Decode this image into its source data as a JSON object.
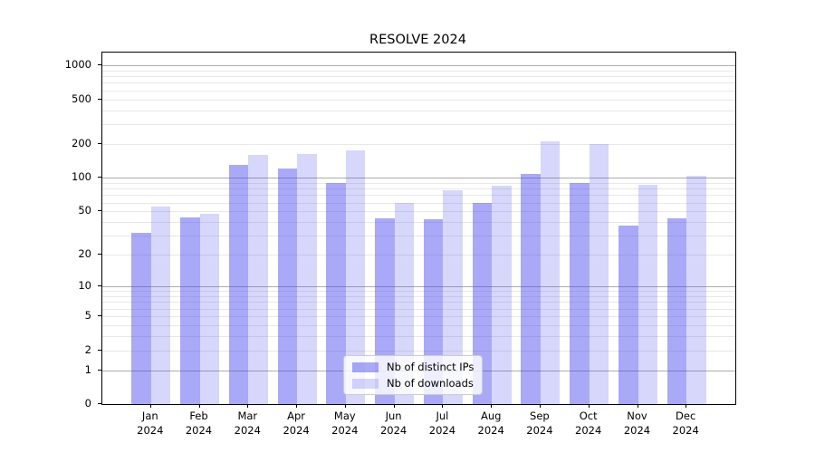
{
  "chart_data": {
    "type": "bar",
    "title": "RESOLVE 2024",
    "categories": [
      "Jan",
      "Feb",
      "Mar",
      "Apr",
      "May",
      "Jun",
      "Jul",
      "Aug",
      "Sep",
      "Oct",
      "Nov",
      "Dec"
    ],
    "category_year": "2024",
    "series": [
      {
        "name": "Nb of distinct IPs",
        "color": "rgba(68,68,238,0.46)",
        "values": [
          32,
          44,
          131,
          121,
          89,
          43,
          42,
          60,
          108,
          90,
          37,
          43
        ]
      },
      {
        "name": "Nb of downloads",
        "color": "rgba(68,68,238,0.21)",
        "values": [
          55,
          47,
          159,
          162,
          176,
          60,
          78,
          85,
          213,
          199,
          86,
          104
        ]
      }
    ],
    "y_scale": "symlog-ln(1+x)",
    "y_ticks": [
      0,
      1,
      2,
      5,
      10,
      20,
      50,
      100,
      200,
      500,
      1000
    ],
    "y_major_gridlines": [
      1,
      10,
      100,
      1000
    ],
    "y_minor_gridlines": [
      2,
      3,
      4,
      5,
      6,
      7,
      8,
      9,
      20,
      30,
      40,
      50,
      60,
      70,
      80,
      90,
      200,
      300,
      400,
      500,
      600,
      700,
      800,
      900
    ],
    "ylim": [
      0,
      1295
    ],
    "xlabel": "",
    "ylabel": "",
    "grid": true,
    "legend_position": "lower center"
  },
  "colors": {
    "background": "#ffffff",
    "axis": "#000000",
    "major_grid": "#adadad",
    "minor_grid": "#e8e8e8",
    "text": "#000000",
    "legend_border": "#cccccc"
  }
}
